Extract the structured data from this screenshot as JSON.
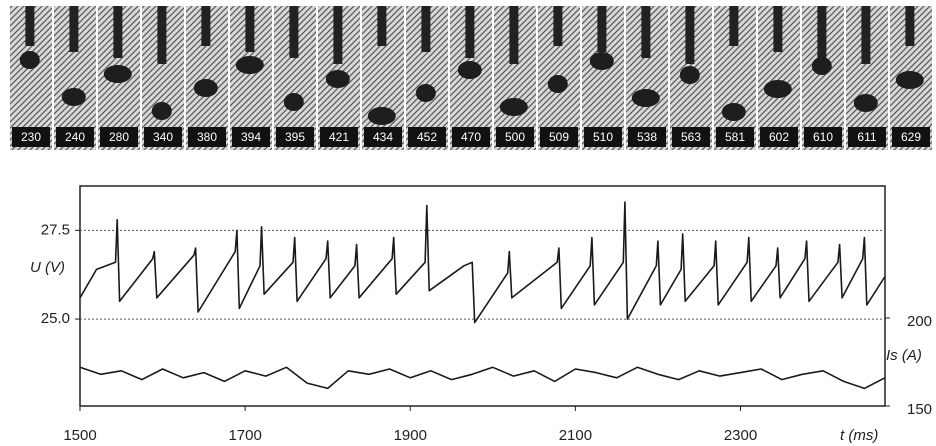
{
  "frames": {
    "labels": [
      230,
      240,
      280,
      340,
      380,
      394,
      395,
      421,
      434,
      452,
      470,
      500,
      509,
      510,
      538,
      563,
      581,
      602,
      610,
      611,
      629
    ]
  },
  "chart_data": {
    "type": "line",
    "x_label": "t (ms)",
    "y_label": "U (V)",
    "y2_label": "Is (A)",
    "xlim": [
      1500,
      2475
    ],
    "xticks": [
      1500,
      1700,
      1900,
      2100,
      2300
    ],
    "ylim": [
      22.55,
      28.75
    ],
    "yticks": [
      {
        "value": 25,
        "label": "25.0"
      },
      27.5
    ],
    "y2lim": [
      150,
      275
    ],
    "y2ticks": [
      150,
      200
    ],
    "grid": true,
    "series": [
      {
        "color": "#1a1a1a",
        "x": [
          1500,
          1520,
          1543,
          1545,
          1548,
          1588,
          1590,
          1593,
          1638,
          1640,
          1643,
          1688,
          1690,
          1693,
          1718,
          1720,
          1723,
          1758,
          1760,
          1763,
          1798,
          1800,
          1803,
          1833,
          1835,
          1838,
          1878,
          1880,
          1883,
          1918,
          1920,
          1923,
          1965,
          1975,
          1978,
          2018,
          2020,
          2023,
          2078,
          2080,
          2083,
          2118,
          2120,
          2123,
          2158,
          2160,
          2163,
          2198,
          2200,
          2203,
          2228,
          2230,
          2233,
          2268,
          2270,
          2273,
          2308,
          2310,
          2313,
          2343,
          2345,
          2348,
          2378,
          2380,
          2383,
          2418,
          2420,
          2423,
          2448,
          2450,
          2453,
          2475
        ],
        "values": [
          25.6,
          26.4,
          26.6,
          27.8,
          25.5,
          26.7,
          26.9,
          25.6,
          26.8,
          27.0,
          25.2,
          26.9,
          27.5,
          25.3,
          26.5,
          27.6,
          25.7,
          26.6,
          27.3,
          25.5,
          26.7,
          27.2,
          25.6,
          26.5,
          27.1,
          25.6,
          26.7,
          27.3,
          25.7,
          26.6,
          28.2,
          25.8,
          26.5,
          26.6,
          24.9,
          26.3,
          26.9,
          25.6,
          26.6,
          27.0,
          25.3,
          26.5,
          27.3,
          25.4,
          26.6,
          28.3,
          25.0,
          26.5,
          27.2,
          25.4,
          26.4,
          27.4,
          25.5,
          26.5,
          27.2,
          25.4,
          26.6,
          27.3,
          25.5,
          26.5,
          27.0,
          25.6,
          26.7,
          27.2,
          25.5,
          26.6,
          27.1,
          25.6,
          26.7,
          27.3,
          25.4,
          26.2
        ]
      },
      {
        "color": "#1a1a1a",
        "axis": "y2",
        "x": [
          1500,
          1525,
          1550,
          1575,
          1600,
          1625,
          1650,
          1675,
          1700,
          1725,
          1750,
          1775,
          1800,
          1825,
          1850,
          1875,
          1900,
          1925,
          1950,
          1975,
          2000,
          2025,
          2050,
          2075,
          2100,
          2125,
          2150,
          2175,
          2200,
          2225,
          2250,
          2275,
          2300,
          2325,
          2350,
          2375,
          2400,
          2425,
          2450,
          2475
        ],
        "values": [
          172,
          168,
          170,
          165,
          171,
          166,
          169,
          164,
          170,
          167,
          172,
          163,
          160,
          170,
          168,
          171,
          166,
          170,
          165,
          168,
          172,
          167,
          170,
          164,
          171,
          169,
          166,
          172,
          168,
          165,
          170,
          167,
          169,
          171,
          165,
          168,
          170,
          164,
          160,
          166
        ]
      }
    ]
  }
}
